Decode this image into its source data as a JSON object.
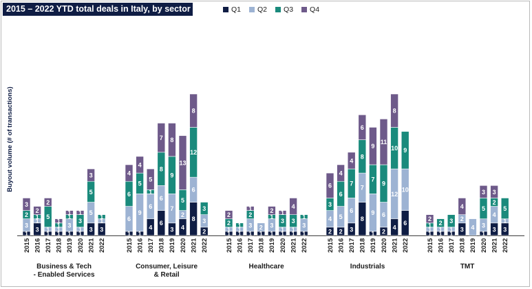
{
  "title": "2015 – 2022 YTD total deals in Italy, by sector",
  "chart_data": {
    "type": "bar",
    "stacked": true,
    "title": "2015 – 2022 YTD total deals in Italy, by sector",
    "ylabel": "Buyout volume (# of transactions)",
    "xlabel": "",
    "years": [
      "2015",
      "2016",
      "2017",
      "2018",
      "2019",
      "2020",
      "2021",
      "2022"
    ],
    "series": [
      {
        "name": "Q1",
        "color": "#0f1d44"
      },
      {
        "name": "Q2",
        "color": "#9db3d3"
      },
      {
        "name": "Q3",
        "color": "#1a8a7c"
      },
      {
        "name": "Q4",
        "color": "#6e5a8a"
      }
    ],
    "groups": [
      {
        "name": [
          "Business & Tech",
          "- Enabled Services"
        ],
        "values": [
          [
            1,
            3,
            2,
            3
          ],
          [
            3,
            1,
            1,
            2
          ],
          [
            1,
            1,
            5,
            2
          ],
          [
            1,
            1,
            1,
            1
          ],
          [
            1,
            3,
            1,
            1
          ],
          [
            1,
            1,
            3,
            1
          ],
          [
            3,
            5,
            5,
            3
          ],
          [
            3,
            1,
            1,
            0
          ]
        ]
      },
      {
        "name": [
          "Consumer, Leisure",
          "& Retail"
        ],
        "values": [
          [
            1,
            6,
            6,
            4
          ],
          [
            1,
            9,
            5,
            4
          ],
          [
            4,
            6,
            1,
            5
          ],
          [
            6,
            6,
            8,
            7
          ],
          [
            3,
            7,
            9,
            8
          ],
          [
            4,
            2,
            5,
            13
          ],
          [
            8,
            6,
            12,
            8
          ],
          [
            2,
            3,
            3,
            0
          ]
        ]
      },
      {
        "name": [
          "Healthcare"
        ],
        "values": [
          [
            1,
            1,
            2,
            2
          ],
          [
            1,
            1,
            1,
            0
          ],
          [
            1,
            3,
            2,
            1
          ],
          [
            1,
            2,
            0,
            0
          ],
          [
            1,
            3,
            1,
            2
          ],
          [
            1,
            1,
            3,
            1
          ],
          [
            1,
            1,
            3,
            4
          ],
          [
            1,
            3,
            1,
            0
          ]
        ]
      },
      {
        "name": [
          "Industrials"
        ],
        "values": [
          [
            2,
            4,
            3,
            6
          ],
          [
            2,
            5,
            6,
            4
          ],
          [
            3,
            6,
            7,
            4
          ],
          [
            8,
            7,
            8,
            6
          ],
          [
            1,
            9,
            7,
            9
          ],
          [
            2,
            6,
            9,
            11
          ],
          [
            4,
            12,
            10,
            8
          ],
          [
            6,
            10,
            9,
            0
          ]
        ]
      },
      {
        "name": [
          "TMT"
        ],
        "values": [
          [
            1,
            1,
            1,
            2
          ],
          [
            1,
            1,
            2,
            0
          ],
          [
            1,
            1,
            3,
            0
          ],
          [
            3,
            2,
            0,
            4
          ],
          [
            0,
            4,
            0,
            0
          ],
          [
            1,
            3,
            5,
            3
          ],
          [
            3,
            4,
            2,
            3
          ],
          [
            3,
            1,
            5,
            0
          ]
        ]
      }
    ]
  }
}
